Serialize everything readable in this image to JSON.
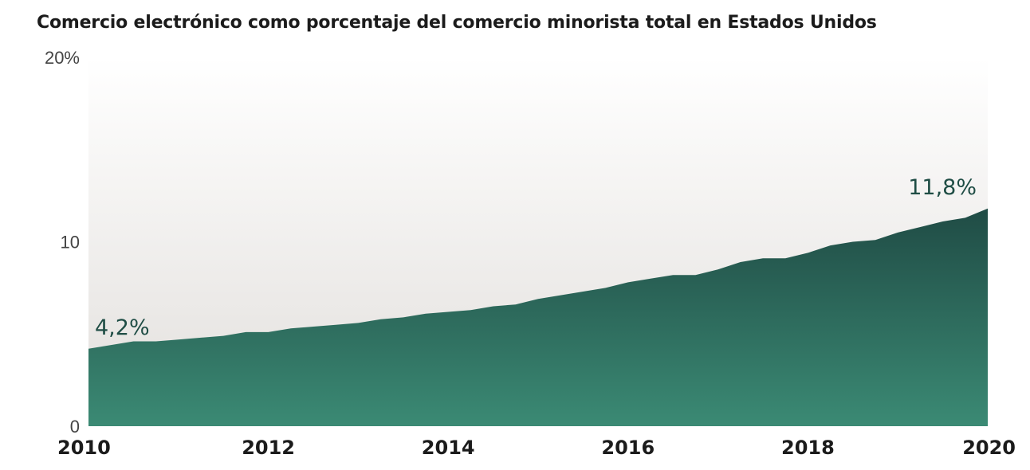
{
  "chart_data": {
    "type": "area",
    "title": "Comercio electrónico como porcentaje del comercio minorista total en Estados Unidos",
    "xlabel": "",
    "ylabel": "",
    "x_range": [
      2010,
      2020
    ],
    "ylim": [
      0,
      20
    ],
    "y_ticks": [
      {
        "value": 0,
        "label": "0"
      },
      {
        "value": 10,
        "label": "10"
      },
      {
        "value": 20,
        "label": "20%"
      }
    ],
    "x_ticks": [
      {
        "value": 2010,
        "label": "2010"
      },
      {
        "value": 2012,
        "label": "2012"
      },
      {
        "value": 2014,
        "label": "2014"
      },
      {
        "value": 2016,
        "label": "2016"
      },
      {
        "value": 2018,
        "label": "2018"
      },
      {
        "value": 2020,
        "label": "2020"
      }
    ],
    "series": [
      {
        "x": [
          2010.0,
          2010.25,
          2010.5,
          2010.75,
          2011.0,
          2011.25,
          2011.5,
          2011.75,
          2012.0,
          2012.25,
          2012.5,
          2012.75,
          2013.0,
          2013.25,
          2013.5,
          2013.75,
          2014.0,
          2014.25,
          2014.5,
          2014.75,
          2015.0,
          2015.25,
          2015.5,
          2015.75,
          2016.0,
          2016.25,
          2016.5,
          2016.75,
          2017.0,
          2017.25,
          2017.5,
          2017.75,
          2018.0,
          2018.25,
          2018.5,
          2018.75,
          2019.0,
          2019.25,
          2019.5,
          2019.75,
          2020.0
        ],
        "values": [
          4.2,
          4.4,
          4.6,
          4.6,
          4.7,
          4.8,
          4.9,
          5.1,
          5.1,
          5.3,
          5.4,
          5.5,
          5.6,
          5.8,
          5.9,
          6.1,
          6.2,
          6.3,
          6.5,
          6.6,
          6.9,
          7.1,
          7.3,
          7.5,
          7.8,
          8.0,
          8.2,
          8.2,
          8.5,
          8.9,
          9.1,
          9.1,
          9.4,
          9.8,
          10.0,
          10.1,
          10.5,
          10.8,
          11.1,
          11.3,
          11.8
        ]
      }
    ],
    "annotations": [
      {
        "x": 2010,
        "y": 4.2,
        "text": "4,2%"
      },
      {
        "x": 2020,
        "y": 11.8,
        "text": "11,8%"
      }
    ],
    "grid": false,
    "legend": "none",
    "colors": {
      "area_top": "#1f4a44",
      "area_bottom": "#3b8a74",
      "bg_top": "#ffffff",
      "bg_bottom": "#e2dfdc",
      "label": "#1f4d45"
    }
  }
}
